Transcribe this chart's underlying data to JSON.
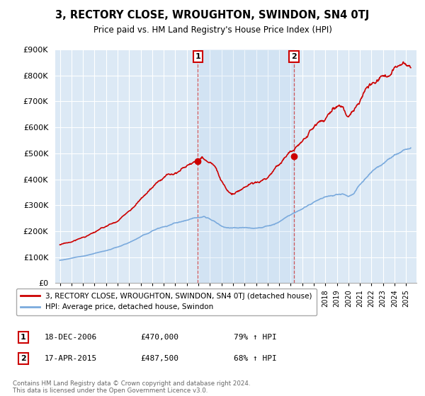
{
  "title": "3, RECTORY CLOSE, WROUGHTON, SWINDON, SN4 0TJ",
  "subtitle": "Price paid vs. HM Land Registry's House Price Index (HPI)",
  "ylim": [
    0,
    900000
  ],
  "yticks": [
    0,
    100000,
    200000,
    300000,
    400000,
    500000,
    600000,
    700000,
    800000,
    900000
  ],
  "red_line_color": "#cc0000",
  "blue_line_color": "#7aaadd",
  "sale1_date": 2006.96,
  "sale1_price": 470000,
  "sale2_date": 2015.29,
  "sale2_price": 487500,
  "plot_bg_color": "#dce9f5",
  "footer_text": "Contains HM Land Registry data © Crown copyright and database right 2024.\nThis data is licensed under the Open Government Licence v3.0.",
  "legend_entry1": "3, RECTORY CLOSE, WROUGHTON, SWINDON, SN4 0TJ (detached house)",
  "legend_entry2": "HPI: Average price, detached house, Swindon",
  "table_row1": [
    "1",
    "18-DEC-2006",
    "£470,000",
    "79% ↑ HPI"
  ],
  "table_row2": [
    "2",
    "17-APR-2015",
    "£487,500",
    "68% ↑ HPI"
  ]
}
